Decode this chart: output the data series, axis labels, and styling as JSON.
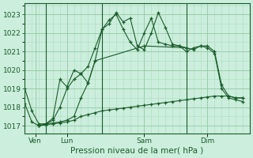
{
  "bg_color": "#cceedd",
  "grid_color_major": "#99ccaa",
  "grid_color_minor": "#aaddbb",
  "line_color": "#1a5c2a",
  "title": "Pression niveau de la mer( hPa )",
  "ylim": [
    1016.6,
    1023.6
  ],
  "xlim": [
    0,
    32
  ],
  "ylabel_vals": [
    1017,
    1018,
    1019,
    1020,
    1021,
    1022,
    1023
  ],
  "day_labels": [
    "Ven",
    "Lun",
    "Sam",
    "Dim"
  ],
  "day_positions": [
    1.5,
    6,
    17,
    26
  ],
  "vline_positions": [
    3,
    11,
    23
  ],
  "series1_x": [
    0,
    1,
    2,
    3,
    4,
    5,
    6,
    7,
    8,
    9,
    10,
    11,
    12,
    13,
    14,
    15,
    16,
    17,
    18,
    19,
    20,
    21,
    22,
    23,
    24,
    25,
    26,
    27,
    28,
    29,
    30,
    31
  ],
  "series1_y": [
    1019.0,
    1017.8,
    1017.1,
    1017.1,
    1017.4,
    1019.5,
    1019.1,
    1020.0,
    1019.8,
    1019.3,
    1020.5,
    1022.2,
    1022.5,
    1023.1,
    1022.6,
    1022.8,
    1021.3,
    1021.1,
    1022.0,
    1023.1,
    1022.3,
    1021.4,
    1021.3,
    1021.2,
    1021.1,
    1021.3,
    1021.3,
    1021.0,
    1019.2,
    1018.6,
    1018.5,
    1018.5
  ],
  "series2_x": [
    0,
    1,
    2,
    3,
    4,
    5,
    6,
    7,
    8,
    9,
    10,
    11,
    12,
    13,
    14,
    15,
    16,
    17,
    18,
    19,
    20,
    21,
    22,
    23,
    24,
    25,
    26,
    27,
    28,
    29,
    30,
    31
  ],
  "series2_y": [
    1018.2,
    1017.2,
    1017.0,
    1017.1,
    1017.3,
    1018.0,
    1019.0,
    1019.5,
    1019.8,
    1020.2,
    1021.2,
    1022.2,
    1022.7,
    1023.0,
    1022.2,
    1021.5,
    1021.1,
    1022.0,
    1022.8,
    1021.5,
    1021.4,
    1021.3,
    1021.3,
    1021.0,
    1021.2,
    1021.3,
    1021.2,
    1020.9,
    1019.0,
    1018.5,
    1018.4,
    1018.3
  ],
  "series3_x": [
    2,
    3,
    5,
    6,
    7,
    8,
    9,
    10,
    17,
    23
  ],
  "series3_y": [
    1017.0,
    1017.1,
    1017.2,
    1017.3,
    1017.5,
    1018.5,
    1019.3,
    1020.5,
    1021.3,
    1021.2
  ],
  "series4_x": [
    2,
    3,
    4,
    5,
    6,
    7,
    8,
    9,
    10,
    11,
    12,
    13,
    14,
    15,
    16,
    17,
    18,
    19,
    20,
    21,
    22,
    23,
    24,
    25,
    26,
    27,
    28,
    29,
    30,
    31
  ],
  "series4_y": [
    1017.0,
    1017.05,
    1017.1,
    1017.15,
    1017.2,
    1017.3,
    1017.5,
    1017.6,
    1017.7,
    1017.8,
    1017.85,
    1017.9,
    1017.95,
    1018.0,
    1018.05,
    1018.1,
    1018.15,
    1018.2,
    1018.25,
    1018.3,
    1018.35,
    1018.4,
    1018.45,
    1018.5,
    1018.55,
    1018.6,
    1018.6,
    1018.6,
    1018.5,
    1018.5
  ]
}
